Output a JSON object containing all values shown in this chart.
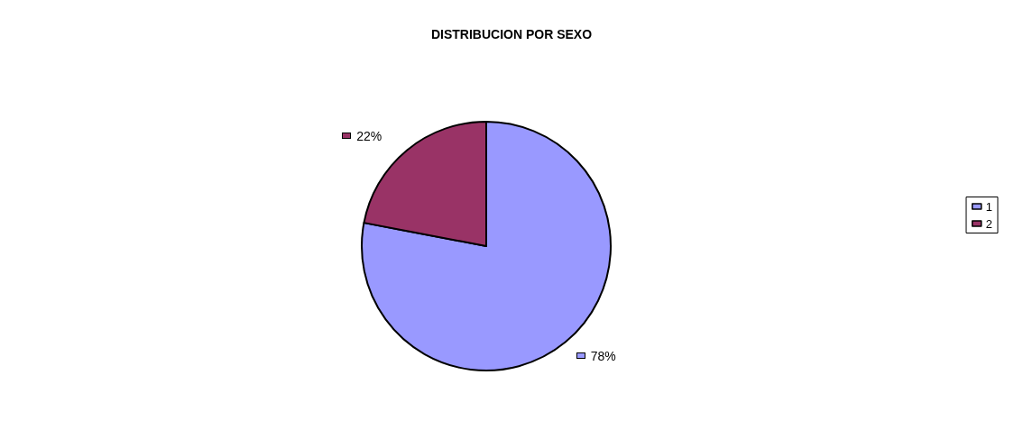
{
  "chart_data": {
    "type": "pie",
    "title": "DISTRIBUCION POR SEXO",
    "categories": [
      "1",
      "2"
    ],
    "values": [
      78,
      22
    ],
    "value_labels": [
      "78%",
      "22%"
    ],
    "colors": [
      "#9999ff",
      "#993366"
    ],
    "data_labels": true,
    "legend": "right"
  }
}
